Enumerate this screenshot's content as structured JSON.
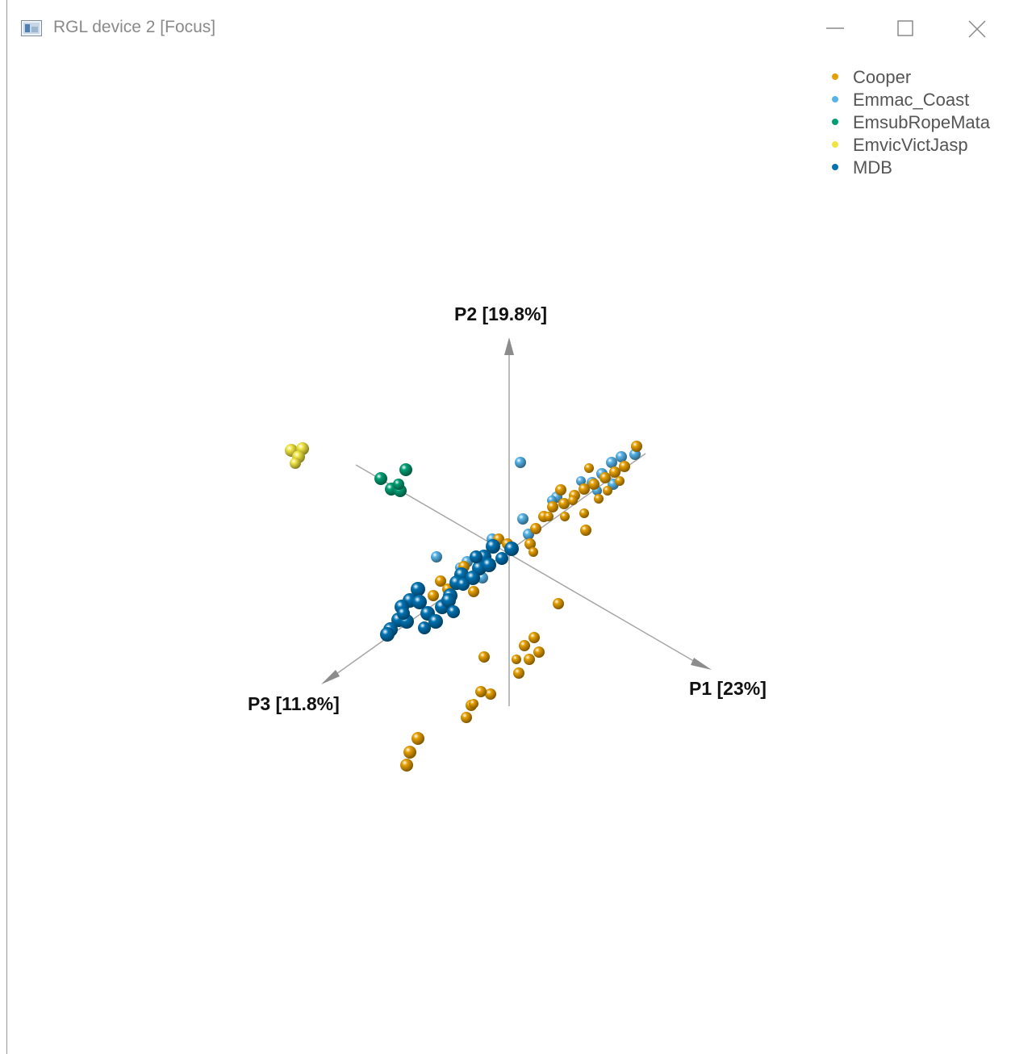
{
  "window": {
    "title": "RGL device 2 [Focus]",
    "icons": {
      "app": "rgl-window-icon",
      "minimize": "minimize-icon",
      "maximize": "maximize-icon",
      "close": "close-icon"
    }
  },
  "colors": {
    "Cooper": "#e69f00",
    "Emmac_Coast": "#56b4e9",
    "EmsubRopeMata": "#009e73",
    "EmvicVictJasp": "#f0e442",
    "MDB": "#0072b2",
    "axis": "#a6a6a6"
  },
  "legend": [
    {
      "label": "Cooper",
      "color": "#e69f00"
    },
    {
      "label": "Emmac_Coast",
      "color": "#56b4e9"
    },
    {
      "label": "EmsubRopeMata",
      "color": "#009e73"
    },
    {
      "label": "EmvicVictJasp",
      "color": "#f0e442"
    },
    {
      "label": "MDB",
      "color": "#0072b2"
    }
  ],
  "axes": {
    "p1": "P1 [23%]",
    "p2": "P2 [19.8%]",
    "p3": "P3 [11.8%]"
  }
}
